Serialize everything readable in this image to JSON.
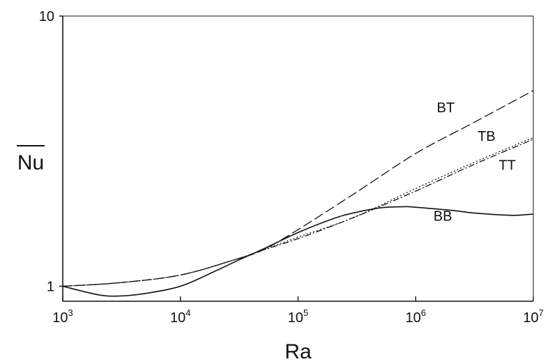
{
  "chart_data": {
    "type": "line",
    "title": "",
    "xlabel": "Ra",
    "ylabel": "Nu",
    "ylabel_overline": true,
    "x_scale": "log",
    "y_scale": "log",
    "xlim": [
      1000,
      10000000
    ],
    "ylim": [
      0.88,
      10
    ],
    "grid": false,
    "x_ticks": [
      {
        "value": 1000,
        "base": "10",
        "exp": "3"
      },
      {
        "value": 10000,
        "base": "10",
        "exp": "4"
      },
      {
        "value": 100000,
        "base": "10",
        "exp": "5"
      },
      {
        "value": 1000000,
        "base": "10",
        "exp": "6"
      },
      {
        "value": 10000000,
        "base": "10",
        "exp": "7"
      }
    ],
    "y_ticks": [
      {
        "value": 1,
        "label": "1"
      },
      {
        "value": 10,
        "label": "10"
      }
    ],
    "series": [
      {
        "name": "BT",
        "style": "dashed",
        "label_at": [
          1800000,
          4.4
        ],
        "x": [
          1000,
          3000,
          10000,
          30000,
          50000,
          100000,
          300000,
          1000000,
          3000000,
          10000000
        ],
        "y": [
          1.0,
          1.03,
          1.1,
          1.26,
          1.36,
          1.62,
          2.2,
          3.1,
          4.0,
          5.3
        ]
      },
      {
        "name": "TB",
        "style": "dotted",
        "label_at": [
          4000000,
          3.45
        ],
        "x": [
          1000,
          3000,
          10000,
          30000,
          50000,
          100000,
          300000,
          1000000,
          3000000,
          10000000
        ],
        "y": [
          1.0,
          1.03,
          1.1,
          1.26,
          1.36,
          1.52,
          1.8,
          2.3,
          2.85,
          3.55
        ]
      },
      {
        "name": "TT",
        "style": "dashdot",
        "label_at": [
          6000000,
          2.7
        ],
        "x": [
          1000,
          3000,
          10000,
          30000,
          50000,
          100000,
          300000,
          1000000,
          3000000,
          10000000
        ],
        "y": [
          1.0,
          1.03,
          1.1,
          1.26,
          1.36,
          1.5,
          1.8,
          2.25,
          2.8,
          3.5
        ]
      },
      {
        "name": "BB",
        "style": "solid",
        "label_at": [
          1700000,
          1.75
        ],
        "x": [
          1000,
          2000,
          3000,
          5000,
          10000,
          20000,
          30000,
          50000,
          100000,
          200000,
          300000,
          500000,
          800000,
          1000000,
          2000000,
          3000000,
          5000000,
          7000000,
          10000000
        ],
        "y": [
          1.0,
          0.93,
          0.92,
          0.94,
          1.0,
          1.14,
          1.24,
          1.37,
          1.58,
          1.78,
          1.87,
          1.95,
          1.97,
          1.96,
          1.91,
          1.87,
          1.84,
          1.83,
          1.85
        ]
      }
    ]
  }
}
